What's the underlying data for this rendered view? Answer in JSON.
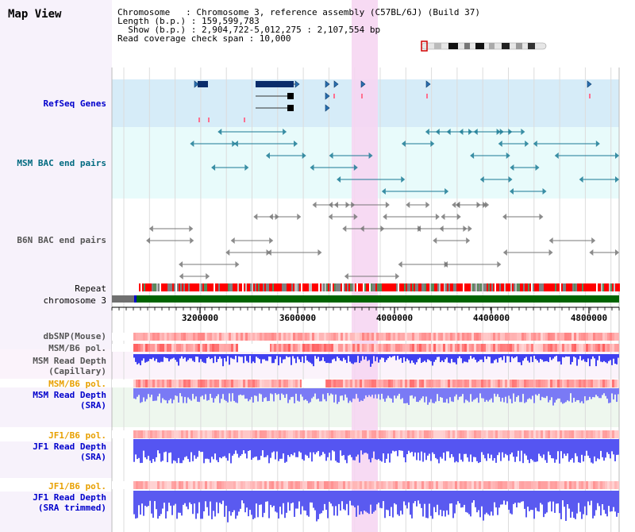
{
  "title": "Map View",
  "info": {
    "chromosome": "Chromosome   : Chromosome 3, reference assembly (C57BL/6J) (Build 37)",
    "length": "Length (b.p.) : 159,599,783",
    "show": "Show (b.p.) : 2,904,722-5,012,275 : 2,107,554 bp",
    "read_check": "Read coverage check span : 10,000"
  },
  "tracks": {
    "refseq": "RefSeq Genes",
    "msm_bac": "MSM BAC end pairs",
    "b6n_bac": "B6N BAC end pairs",
    "repeat": "Repeat",
    "chromosome": "chromosome 3",
    "dbsnp": "dbSNP(Mouse)",
    "msm_pol": "MSM/B6 pol.",
    "msm_depth_cap_1": "MSM Read Depth",
    "msm_depth_cap_2": "(Capillary)",
    "msm_pol2": "MSM/B6 pol.",
    "msm_depth_sra_1": "MSM Read Depth",
    "msm_depth_sra_2": "(SRA)",
    "jf1_pol": "JF1/B6 pol.",
    "jf1_depth_1": "JF1 Read Depth",
    "jf1_depth_2": "(SRA)",
    "jf1_pol2": "JF1/B6 pol.",
    "jf1_trim_1": "JF1 Read Depth",
    "jf1_trim_2": "(SRA trimmed)"
  },
  "axis": {
    "ticks": [
      "3200000",
      "3600000",
      "4000000",
      "4400000",
      "4800000"
    ]
  },
  "colors": {
    "sidebar": "#f7f2fb",
    "refseq_bg": "#d6ecf8",
    "bac_bg": "#e8fbfb",
    "highlight": "#f6d6f2",
    "depth_blue": "#4b4bf0",
    "pol_red": "#ee3030",
    "label_blue": "#0000cc",
    "label_teal": "#006a80",
    "label_orange": "#e8a000",
    "repeat_red": "#ff0000",
    "chrom_green": "#006400"
  }
}
